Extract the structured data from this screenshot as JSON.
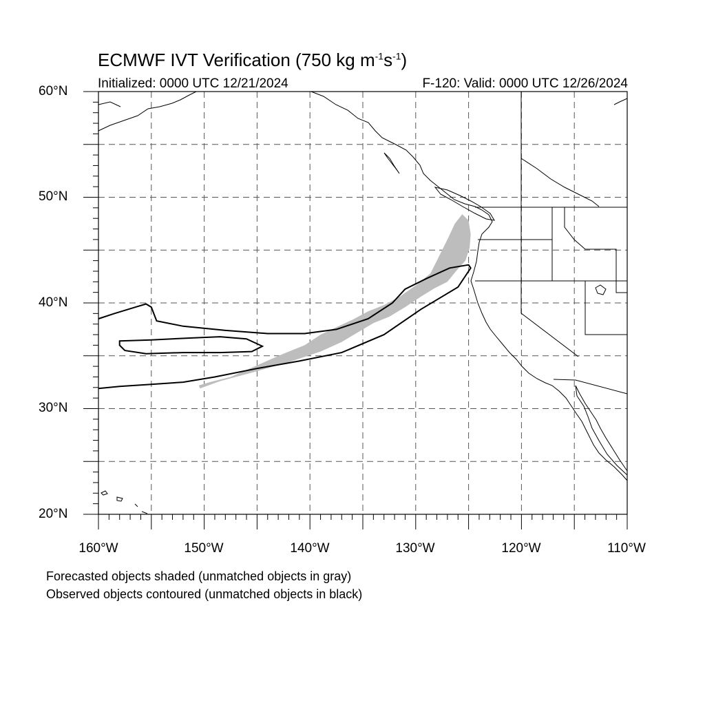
{
  "title": {
    "main": "ECMWF IVT Verification (750 kg m",
    "exp1": "-1",
    "mid": "s",
    "exp2": "-1",
    "end": ")"
  },
  "subtitle_left": "Initialized: 0000 UTC 12/21/2024",
  "subtitle_right": "F-120: Valid: 0000 UTC 12/26/2024",
  "lat_labels": [
    "60°N",
    "50°N",
    "40°N",
    "30°N",
    "20°N"
  ],
  "lon_labels": [
    "160°W",
    "150°W",
    "140°W",
    "130°W",
    "120°W",
    "110°W"
  ],
  "footnotes": [
    "Forecasted objects shaded (unmatched objects in gray)",
    "Observed objects contoured (unmatched objects in black)"
  ],
  "colors": {
    "forecast_fill": "#bdbdbd",
    "observed_line": "#000000",
    "grid": "#555555"
  },
  "map_extent": {
    "lon": [
      -160,
      -110
    ],
    "lat": [
      20,
      60
    ]
  },
  "forecast_object": [
    [
      -150.4,
      31.9
    ],
    [
      -148.5,
      32.6
    ],
    [
      -145.5,
      33.4
    ],
    [
      -142.0,
      34.4
    ],
    [
      -139.0,
      35.4
    ],
    [
      -137.0,
      36.3
    ],
    [
      -135.5,
      37.2
    ],
    [
      -134.0,
      38.1
    ],
    [
      -132.5,
      38.7
    ],
    [
      -131.0,
      39.6
    ],
    [
      -129.5,
      40.6
    ],
    [
      -128.2,
      41.4
    ],
    [
      -127.0,
      42.0
    ],
    [
      -126.2,
      43.0
    ],
    [
      -125.3,
      44.0
    ],
    [
      -124.9,
      45.2
    ],
    [
      -124.8,
      46.5
    ],
    [
      -125.0,
      47.8
    ],
    [
      -125.6,
      48.4
    ],
    [
      -126.3,
      47.5
    ],
    [
      -126.9,
      46.2
    ],
    [
      -127.5,
      45.0
    ],
    [
      -128.1,
      43.8
    ],
    [
      -128.6,
      42.8
    ],
    [
      -129.8,
      41.8
    ],
    [
      -131.5,
      40.6
    ],
    [
      -133.0,
      39.8
    ],
    [
      -134.5,
      39.2
    ],
    [
      -136.0,
      38.4
    ],
    [
      -137.5,
      37.7
    ],
    [
      -139.0,
      37.0
    ],
    [
      -140.5,
      36.0
    ],
    [
      -142.5,
      35.2
    ],
    [
      -145.0,
      34.1
    ],
    [
      -147.5,
      33.0
    ],
    [
      -149.5,
      32.5
    ],
    [
      -150.5,
      32.2
    ]
  ],
  "observed_object_1": [
    [
      -160.0,
      38.5
    ],
    [
      -158.5,
      39.0
    ],
    [
      -156.5,
      39.6
    ],
    [
      -155.5,
      39.9
    ],
    [
      -155.0,
      39.6
    ],
    [
      -154.5,
      38.3
    ],
    [
      -152.0,
      37.8
    ],
    [
      -148.0,
      37.4
    ],
    [
      -144.0,
      37.1
    ],
    [
      -140.5,
      37.1
    ],
    [
      -137.5,
      37.5
    ],
    [
      -134.5,
      38.5
    ],
    [
      -132.2,
      40.0
    ],
    [
      -131.0,
      41.3
    ],
    [
      -129.0,
      42.3
    ],
    [
      -126.8,
      43.3
    ],
    [
      -125.0,
      43.6
    ],
    [
      -124.8,
      43.3
    ],
    [
      -126.0,
      41.5
    ],
    [
      -129.5,
      39.4
    ],
    [
      -133.0,
      37.0
    ],
    [
      -137.0,
      35.3
    ],
    [
      -141.0,
      34.5
    ],
    [
      -145.0,
      33.8
    ],
    [
      -149.0,
      33.0
    ],
    [
      -152.0,
      32.5
    ],
    [
      -155.0,
      32.3
    ],
    [
      -158.0,
      32.1
    ],
    [
      -160.0,
      31.9
    ]
  ],
  "observed_object_2": [
    [
      -158.0,
      36.4
    ],
    [
      -155.0,
      36.5
    ],
    [
      -151.0,
      36.7
    ],
    [
      -148.5,
      36.8
    ],
    [
      -146.0,
      36.6
    ],
    [
      -144.5,
      35.9
    ],
    [
      -145.5,
      35.4
    ],
    [
      -148.5,
      35.3
    ],
    [
      -152.0,
      35.3
    ],
    [
      -155.5,
      35.2
    ],
    [
      -157.5,
      35.5
    ],
    [
      -158.0,
      36.0
    ]
  ]
}
